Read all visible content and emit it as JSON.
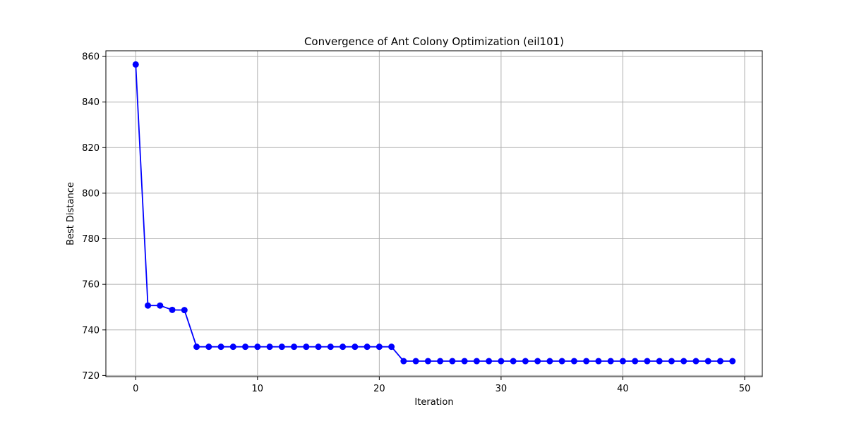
{
  "chart_data": {
    "type": "line",
    "title": "Convergence of Ant Colony Optimization (eil101)",
    "xlabel": "Iteration",
    "ylabel": "Best Distance",
    "xlim": [
      -2.45,
      51.45
    ],
    "ylim": [
      719.5,
      862.5
    ],
    "xticks": [
      0,
      10,
      20,
      30,
      40,
      50
    ],
    "yticks": [
      720,
      740,
      760,
      780,
      800,
      820,
      840,
      860
    ],
    "grid": true,
    "legend": "none",
    "series": [
      {
        "color": "#0000ff",
        "marker": "circle",
        "x": [
          0,
          1,
          2,
          3,
          4,
          5,
          6,
          7,
          8,
          9,
          10,
          11,
          12,
          13,
          14,
          15,
          16,
          17,
          18,
          19,
          20,
          21,
          22,
          23,
          24,
          25,
          26,
          27,
          28,
          29,
          30,
          31,
          32,
          33,
          34,
          35,
          36,
          37,
          38,
          39,
          40,
          41,
          42,
          43,
          44,
          45,
          46,
          47,
          48,
          49
        ],
        "y": [
          856.5,
          750.7,
          750.7,
          748.8,
          748.7,
          732.6,
          732.6,
          732.6,
          732.6,
          732.6,
          732.6,
          732.6,
          732.6,
          732.6,
          732.6,
          732.6,
          732.6,
          732.6,
          732.6,
          732.6,
          732.6,
          732.6,
          726.3,
          726.3,
          726.3,
          726.3,
          726.3,
          726.3,
          726.3,
          726.3,
          726.3,
          726.3,
          726.3,
          726.3,
          726.3,
          726.3,
          726.3,
          726.3,
          726.3,
          726.3,
          726.3,
          726.3,
          726.3,
          726.3,
          726.3,
          726.3,
          726.3,
          726.3,
          726.3,
          726.3
        ]
      }
    ]
  }
}
